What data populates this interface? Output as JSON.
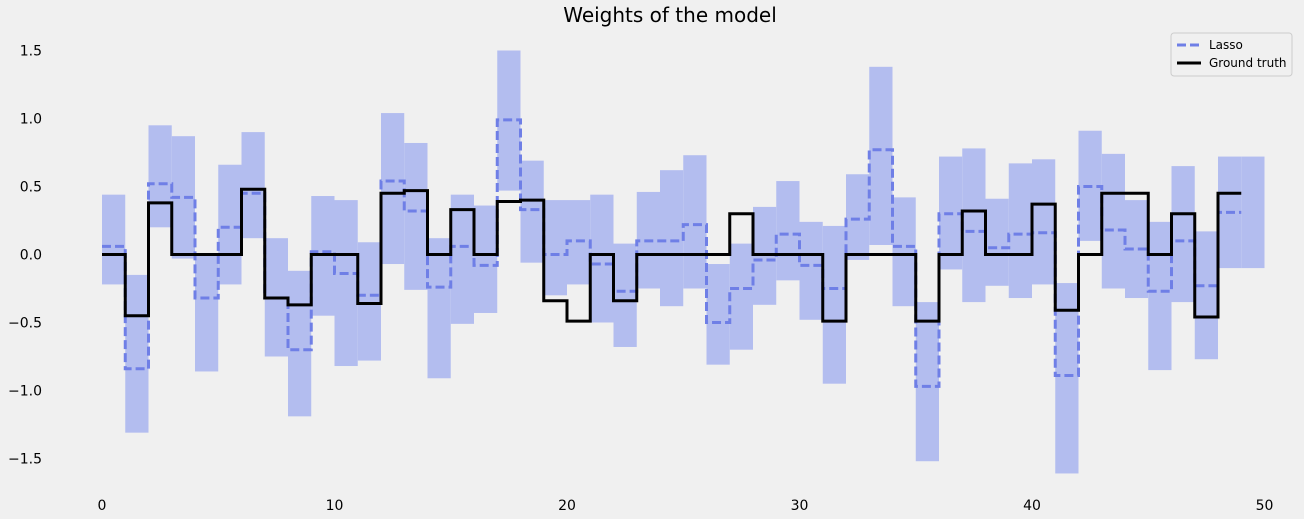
{
  "chart_data": {
    "type": "line",
    "title": "Weights of the model",
    "xlabel": "",
    "ylabel": "",
    "xlim": [
      -0.5,
      50
    ],
    "ylim": [
      -1.75,
      1.6
    ],
    "xticks": [
      0,
      10,
      20,
      30,
      40,
      50
    ],
    "xtick_labels": [
      "0",
      "10",
      "20",
      "30",
      "40",
      "50"
    ],
    "yticks": [
      -1.5,
      -1.0,
      -0.5,
      0.0,
      0.5,
      1.0,
      1.5
    ],
    "ytick_labels": [
      "−1.5",
      "−1.0",
      "−0.5",
      "0.0",
      "0.5",
      "1.0",
      "1.5"
    ],
    "grid": false,
    "legend_position": "top-right",
    "step_x": [
      0,
      1,
      2,
      3,
      4,
      5,
      6,
      7,
      8,
      9,
      10,
      11,
      12,
      13,
      14,
      15,
      16,
      17,
      18,
      19,
      20,
      21,
      22,
      23,
      24,
      25,
      26,
      27,
      28,
      29,
      30,
      31,
      32,
      33,
      34,
      35,
      36,
      37,
      38,
      39,
      40,
      41,
      42,
      43,
      44,
      45,
      46,
      47,
      48,
      49
    ],
    "series": [
      {
        "name": "Lasso",
        "style": "dashed",
        "color": "#6f7fe6",
        "values": [
          0.06,
          -0.84,
          0.52,
          0.42,
          -0.32,
          0.2,
          0.45,
          -0.32,
          -0.7,
          0.02,
          -0.14,
          -0.3,
          0.54,
          0.32,
          -0.24,
          0.06,
          -0.08,
          0.99,
          0.33,
          0.0,
          0.1,
          -0.07,
          -0.27,
          0.1,
          0.1,
          0.22,
          -0.5,
          -0.25,
          -0.04,
          0.15,
          -0.08,
          -0.25,
          0.26,
          0.77,
          0.06,
          -0.97,
          0.3,
          0.17,
          0.05,
          0.15,
          0.16,
          -0.89,
          0.5,
          0.18,
          0.04,
          -0.27,
          0.1,
          -0.23,
          0.31,
          0.31
        ],
        "lower": [
          -0.22,
          -1.31,
          0.2,
          -0.03,
          -0.86,
          -0.22,
          0.12,
          -0.75,
          -1.19,
          -0.45,
          -0.82,
          -0.78,
          -0.07,
          -0.26,
          -0.91,
          -0.51,
          -0.43,
          0.47,
          -0.06,
          -0.3,
          -0.22,
          -0.5,
          -0.68,
          -0.25,
          -0.38,
          -0.25,
          -0.81,
          -0.7,
          -0.37,
          -0.19,
          -0.48,
          -0.95,
          -0.04,
          0.07,
          -0.38,
          -1.52,
          -0.11,
          -0.35,
          -0.23,
          -0.32,
          -0.22,
          -1.61,
          0.1,
          -0.25,
          -0.32,
          -0.85,
          -0.35,
          -0.77,
          -0.1,
          -0.1
        ],
        "upper": [
          0.44,
          -0.15,
          0.95,
          0.87,
          0.0,
          0.66,
          0.9,
          0.12,
          -0.12,
          0.43,
          0.4,
          0.09,
          1.04,
          0.82,
          0.12,
          0.44,
          0.36,
          1.5,
          0.69,
          0.4,
          0.4,
          0.44,
          0.08,
          0.46,
          0.62,
          0.73,
          -0.07,
          0.08,
          0.35,
          0.54,
          0.24,
          0.21,
          0.59,
          1.38,
          0.42,
          -0.35,
          0.72,
          0.78,
          0.41,
          0.67,
          0.7,
          -0.21,
          0.91,
          0.74,
          0.4,
          0.24,
          0.65,
          0.17,
          0.72,
          0.72
        ]
      },
      {
        "name": "Ground truth",
        "style": "solid",
        "color": "#000000",
        "values": [
          0,
          -0.45,
          0.38,
          0,
          0,
          0,
          0.48,
          -0.32,
          -0.37,
          0,
          0,
          -0.36,
          0.45,
          0.47,
          0,
          0.33,
          0,
          0.39,
          0.4,
          -0.34,
          -0.49,
          0,
          -0.34,
          0,
          0,
          0,
          0,
          0.3,
          0,
          0,
          0,
          -0.49,
          0,
          0,
          0,
          -0.49,
          0,
          0.32,
          0,
          0,
          0.37,
          -0.41,
          0,
          0.45,
          0.45,
          0,
          0.3,
          -0.46,
          0.45,
          0.45
        ]
      }
    ]
  }
}
